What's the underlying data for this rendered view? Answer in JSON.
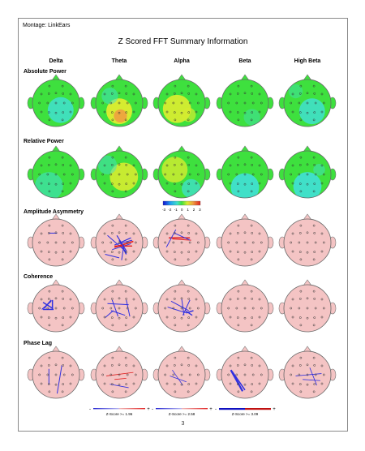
{
  "header": {
    "montage": "Montage:  LinkEars",
    "title": "Z Scored FFT Summary Information"
  },
  "columns": [
    "Delta",
    "Theta",
    "Alpha",
    "Beta",
    "High Beta"
  ],
  "sections": {
    "absolute_power": "Absolute Power",
    "relative_power": "Relative Power",
    "amplitude_asymmetry": "Amplitude Asymmetry",
    "coherence": "Coherence",
    "phase_lag": "Phase Lag"
  },
  "color_scale": {
    "ticks": [
      "-3",
      "-2",
      "-1",
      "0",
      "1",
      "2",
      "3"
    ]
  },
  "legends": [
    {
      "minus": "-",
      "label": "Z-Score >= 1.96",
      "plus": "+"
    },
    {
      "minus": "-",
      "label": "Z-Score >= 2.58",
      "plus": "+"
    },
    {
      "minus": "-",
      "label": "Z-Score >= 3.09",
      "plus": "+"
    }
  ],
  "page_number": "3",
  "colors": {
    "head_pink": "#f4c4c4",
    "green": "#3ee03e",
    "cyan": "#40e0c8",
    "yellow": "#d6ec30",
    "orange": "#f0a040",
    "blue_line": "#3030e0",
    "red_line": "#e02020"
  }
}
